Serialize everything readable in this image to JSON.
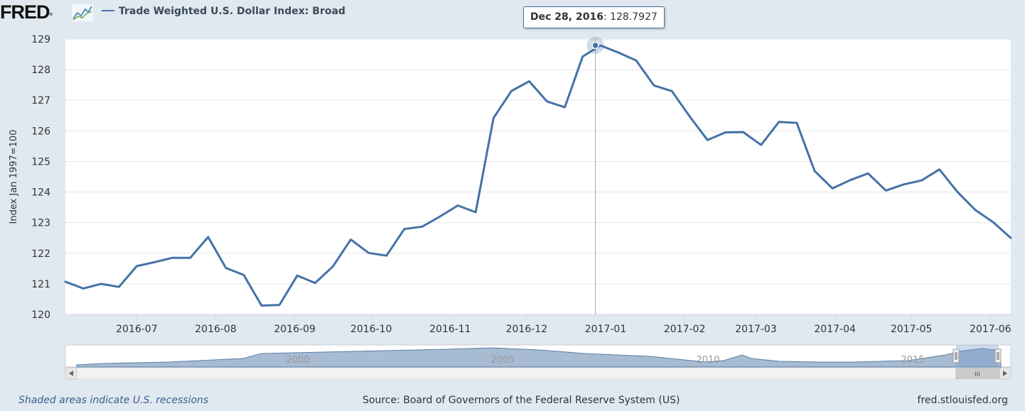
{
  "header": {
    "logo_text": "FRED",
    "logo_registered": "®",
    "series_legend": "Trade Weighted U.S. Dollar Index: Broad",
    "series_color": "#4572a7"
  },
  "tooltip": {
    "date": "Dec 28, 2016",
    "value": ": 128.7927"
  },
  "footer": {
    "recession_note": "Shaded areas indicate U.S. recessions",
    "source": "Source: Board of Governors of the Federal Reserve System (US)",
    "url": "fred.stlouisfed.org"
  },
  "navigator": {
    "year_labels": [
      "2000",
      "2005",
      "2010",
      "2015"
    ],
    "scroll_grip": "III"
  },
  "chart_data": {
    "type": "line",
    "title": "",
    "xlabel": "",
    "ylabel": "Index Jan 1997=100",
    "ylim": [
      120,
      129
    ],
    "y_ticks": [
      "120",
      "121",
      "122",
      "123",
      "124",
      "125",
      "126",
      "127",
      "128",
      "129"
    ],
    "x_tick_labels": [
      "2016-07",
      "2016-08",
      "2016-09",
      "2016-10",
      "2016-11",
      "2016-12",
      "2017-01",
      "2017-02",
      "2017-03",
      "2017-04",
      "2017-05",
      "2017-06"
    ],
    "x_tick_dates": [
      "2016-07-01",
      "2016-08-01",
      "2016-09-01",
      "2016-10-01",
      "2016-11-01",
      "2016-12-01",
      "2017-01-01",
      "2017-02-01",
      "2017-03-01",
      "2017-04-01",
      "2017-05-01",
      "2017-06-01"
    ],
    "x_range": [
      "2016-06-03",
      "2017-06-09"
    ],
    "grid": true,
    "legend_position": "top-left",
    "highlight": {
      "date": "2016-12-28",
      "value": 128.7927
    },
    "series": [
      {
        "name": "Trade Weighted U.S. Dollar Index: Broad",
        "color": "#4572a7",
        "x": [
          "2016-06-03",
          "2016-06-10",
          "2016-06-17",
          "2016-06-24",
          "2016-07-01",
          "2016-07-08",
          "2016-07-15",
          "2016-07-22",
          "2016-07-29",
          "2016-08-05",
          "2016-08-12",
          "2016-08-19",
          "2016-08-26",
          "2016-09-02",
          "2016-09-09",
          "2016-09-16",
          "2016-09-23",
          "2016-09-30",
          "2016-10-07",
          "2016-10-14",
          "2016-10-21",
          "2016-10-28",
          "2016-11-04",
          "2016-11-11",
          "2016-11-18",
          "2016-11-25",
          "2016-12-02",
          "2016-12-09",
          "2016-12-16",
          "2016-12-23",
          "2016-12-30",
          "2017-01-06",
          "2017-01-13",
          "2017-01-20",
          "2017-01-27",
          "2017-02-03",
          "2017-02-10",
          "2017-02-17",
          "2017-02-24",
          "2017-03-03",
          "2017-03-10",
          "2017-03-17",
          "2017-03-24",
          "2017-03-31",
          "2017-04-07",
          "2017-04-14",
          "2017-04-21",
          "2017-04-28",
          "2017-05-05",
          "2017-05-12",
          "2017-05-19",
          "2017-05-26",
          "2017-06-02",
          "2017-06-09"
        ],
        "y": [
          121.07,
          120.85,
          121.0,
          120.9,
          121.58,
          121.71,
          121.85,
          121.85,
          122.53,
          121.52,
          121.29,
          120.29,
          120.31,
          121.27,
          121.03,
          121.57,
          122.45,
          122.01,
          121.92,
          122.79,
          122.87,
          123.2,
          123.56,
          123.34,
          126.42,
          127.3,
          127.62,
          126.96,
          126.77,
          128.43,
          128.79,
          128.56,
          128.3,
          127.48,
          127.3,
          126.47,
          125.7,
          125.95,
          125.96,
          125.54,
          126.29,
          126.26,
          124.69,
          124.12,
          124.39,
          124.61,
          124.05,
          124.25,
          124.38,
          124.74,
          124.01,
          123.42,
          123.02,
          122.5
        ]
      }
    ]
  }
}
